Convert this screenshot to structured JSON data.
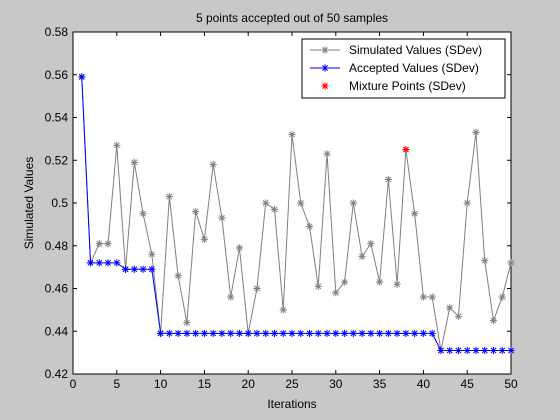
{
  "chart_data": {
    "type": "line",
    "title": "5 points accepted out of 50 samples",
    "xlabel": "Iterations",
    "ylabel": "Simulated Values",
    "xlim": [
      0,
      50
    ],
    "ylim": [
      0.42,
      0.58
    ],
    "xticks": [
      0,
      5,
      10,
      15,
      20,
      25,
      30,
      35,
      40,
      45,
      50
    ],
    "yticks": [
      0.42,
      0.44,
      0.46,
      0.48,
      0.5,
      0.52,
      0.54,
      0.56,
      0.58
    ],
    "xtick_labels": [
      "0",
      "5",
      "10",
      "15",
      "20",
      "25",
      "30",
      "35",
      "40",
      "45",
      "50"
    ],
    "ytick_labels": [
      "0.42",
      "0.44",
      "0.46",
      "0.48",
      "0.5",
      "0.52",
      "0.54",
      "0.56",
      "0.58"
    ],
    "grid": false,
    "legend_position": "top-right",
    "series": [
      {
        "name": "Simulated Values (SDev)",
        "color": "#808080",
        "marker": "asterisk",
        "x": [
          1,
          2,
          3,
          4,
          5,
          6,
          7,
          8,
          9,
          10,
          11,
          12,
          13,
          14,
          15,
          16,
          17,
          18,
          19,
          20,
          21,
          22,
          23,
          24,
          25,
          26,
          27,
          28,
          29,
          30,
          31,
          32,
          33,
          34,
          35,
          36,
          37,
          38,
          39,
          40,
          41,
          42,
          43,
          44,
          45,
          46,
          47,
          48,
          49,
          50
        ],
        "y": [
          0.559,
          0.472,
          0.481,
          0.481,
          0.527,
          0.469,
          0.519,
          0.495,
          0.476,
          0.439,
          0.503,
          0.466,
          0.444,
          0.496,
          0.483,
          0.518,
          0.493,
          0.456,
          0.479,
          0.439,
          0.46,
          0.5,
          0.497,
          0.45,
          0.532,
          0.5,
          0.489,
          0.461,
          0.523,
          0.458,
          0.463,
          0.5,
          0.475,
          0.481,
          0.463,
          0.511,
          0.462,
          0.525,
          0.495,
          0.456,
          0.456,
          0.431,
          0.451,
          0.447,
          0.5,
          0.533,
          0.473,
          0.445,
          0.456,
          0.472
        ]
      },
      {
        "name": "Accepted Values (SDev)",
        "color": "#0000ff",
        "marker": "asterisk",
        "x": [
          1,
          2,
          3,
          4,
          5,
          6,
          7,
          8,
          9,
          10,
          11,
          12,
          13,
          14,
          15,
          16,
          17,
          18,
          19,
          20,
          21,
          22,
          23,
          24,
          25,
          26,
          27,
          28,
          29,
          30,
          31,
          32,
          33,
          34,
          35,
          36,
          37,
          38,
          39,
          40,
          41,
          42,
          43,
          44,
          45,
          46,
          47,
          48,
          49,
          50
        ],
        "y": [
          0.559,
          0.472,
          0.472,
          0.472,
          0.472,
          0.469,
          0.469,
          0.469,
          0.469,
          0.439,
          0.439,
          0.439,
          0.439,
          0.439,
          0.439,
          0.439,
          0.439,
          0.439,
          0.439,
          0.439,
          0.439,
          0.439,
          0.439,
          0.439,
          0.439,
          0.439,
          0.439,
          0.439,
          0.439,
          0.439,
          0.439,
          0.439,
          0.439,
          0.439,
          0.439,
          0.439,
          0.439,
          0.439,
          0.439,
          0.439,
          0.439,
          0.431,
          0.431,
          0.431,
          0.431,
          0.431,
          0.431,
          0.431,
          0.431,
          0.431
        ]
      },
      {
        "name": "Mixture Points (SDev)",
        "color": "#ff0000",
        "marker": "asterisk",
        "x": [
          38
        ],
        "y": [
          0.525
        ]
      }
    ]
  }
}
